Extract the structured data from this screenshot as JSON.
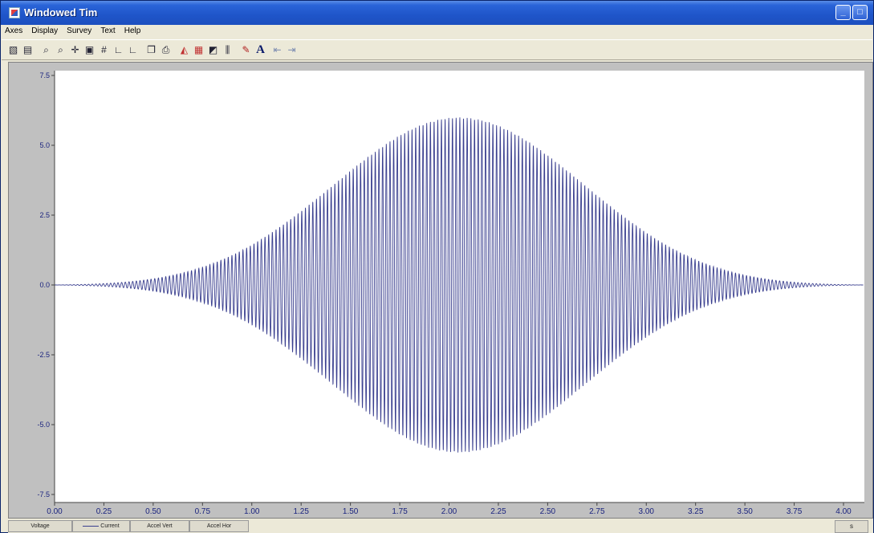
{
  "window": {
    "title": "Windowed Tim"
  },
  "menu": [
    {
      "label": "Axes"
    },
    {
      "label": "Display"
    },
    {
      "label": "Survey"
    },
    {
      "label": "Text"
    },
    {
      "label": "Help"
    }
  ],
  "toolbar": {
    "buttons": [
      {
        "icon": "chart-icon"
      },
      {
        "icon": "table-icon"
      },
      {
        "icon": "zoom-in-icon"
      },
      {
        "icon": "zoom-out-icon"
      },
      {
        "icon": "crosshair-icon"
      },
      {
        "icon": "save-icon"
      },
      {
        "icon": "grid-icon"
      },
      {
        "icon": "axis-x-icon"
      },
      {
        "icon": "axis-y-icon"
      },
      {
        "icon": "copy-icon"
      },
      {
        "icon": "print-icon"
      },
      {
        "icon": "area-chart-icon"
      },
      {
        "icon": "grid-toggle-icon"
      },
      {
        "icon": "line-chart-icon"
      },
      {
        "icon": "bar-chart-icon"
      },
      {
        "icon": "color-brush-icon"
      },
      {
        "icon": "font-icon",
        "label": "A"
      },
      {
        "icon": "arrow-left-icon"
      },
      {
        "icon": "arrow-right-icon"
      }
    ]
  },
  "chart_data": {
    "type": "line",
    "title": "",
    "xlabel": "",
    "ylabel": "",
    "xlim": [
      0.0,
      4.0
    ],
    "ylim": [
      -7.5,
      7.5
    ],
    "xticks": [
      "0.00",
      "0.25",
      "0.50",
      "0.75",
      "1.00",
      "1.25",
      "1.50",
      "1.75",
      "2.00",
      "2.25",
      "2.50",
      "2.75",
      "3.00",
      "3.25",
      "3.50",
      "3.75",
      "4.00"
    ],
    "yticks": [
      "7.5",
      "5.0",
      "2.5",
      "0.0",
      "-2.5",
      "-5.0",
      "-7.5"
    ],
    "grid": false,
    "line_color": "#3a3f8f",
    "series": [
      {
        "name": "Current",
        "signal": "windowed sine burst",
        "peak_amplitude": 6.0,
        "peak_time": 2.05,
        "start_time": 0.0,
        "end_time": 4.1
      }
    ]
  },
  "series_tabs": [
    {
      "label": "Voltage",
      "active": false
    },
    {
      "label": "Current",
      "active": true
    },
    {
      "label": "Accel Vert",
      "active": false
    },
    {
      "label": "Accel Hor",
      "active": false
    }
  ],
  "units": "s"
}
